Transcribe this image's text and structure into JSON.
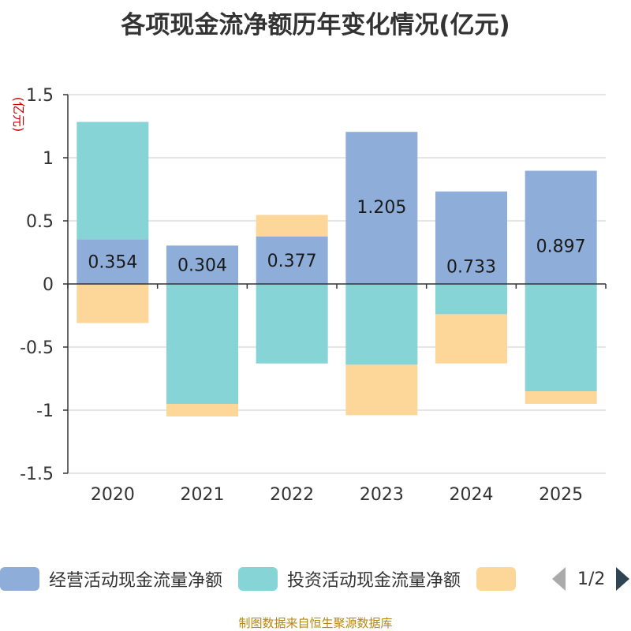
{
  "title": "各项现金流净额历年变化情况(亿元)",
  "source": "制图数据来自恒生聚源数据库",
  "pager": {
    "text": "1/2"
  },
  "colors": {
    "operating": "#8eaed9",
    "investing": "#86d4d6",
    "financing": "#fdd79a",
    "axis": "#333333",
    "grid": "#cccccc",
    "unit": "#cc0000"
  },
  "chart_data": {
    "type": "bar",
    "stacked": true,
    "unit_label": "(亿元)",
    "categories": [
      "2020",
      "2021",
      "2022",
      "2023",
      "2024",
      "2025"
    ],
    "ylim": [
      -1.5,
      1.5
    ],
    "yticks": [
      1.5,
      1,
      0.5,
      0,
      -0.5,
      -1,
      -1.5
    ],
    "ytick_labels": [
      "1.5",
      "1",
      "0.5",
      "0",
      "-0.5",
      "-1",
      "-1.5"
    ],
    "series": [
      {
        "name": "经营活动现金流量净额",
        "key": "operating",
        "values": [
          0.354,
          0.304,
          0.377,
          1.205,
          0.733,
          0.897
        ],
        "labels": [
          "0.354",
          "0.304",
          "0.377",
          "1.205",
          "0.733",
          "0.897"
        ]
      },
      {
        "name": "投资活动现金流量净额",
        "key": "investing",
        "values": [
          0.93,
          -0.95,
          -0.63,
          -0.64,
          -0.24,
          -0.85
        ]
      },
      {
        "name": "",
        "key": "financing",
        "values": [
          -0.31,
          -0.1,
          0.17,
          -0.4,
          -0.39,
          -0.1
        ]
      }
    ]
  }
}
